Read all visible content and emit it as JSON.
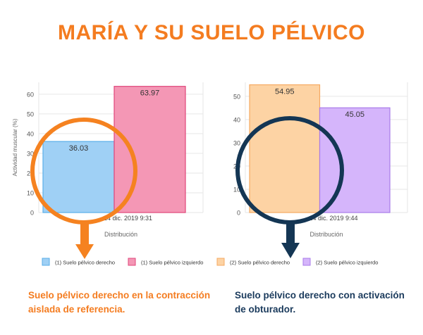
{
  "title": "MARÍA Y SU SUELO PÉLVICO",
  "chart_data": [
    {
      "type": "bar",
      "categories": [
        "14 dic. 2019 9:31"
      ],
      "series": [
        {
          "name": "(1) Suelo pélvico derecho",
          "values": [
            36.03
          ],
          "color": "#9fd0f5",
          "stroke": "#5aaee8"
        },
        {
          "name": "(1) Suelo pélvico izquierdo",
          "values": [
            63.97
          ],
          "color": "#f497b5",
          "stroke": "#e0457a"
        }
      ],
      "xlabel": "Distribución",
      "ylabel": "Actividad muscular (%)",
      "ylim": [
        0,
        65
      ],
      "yticks": [
        0,
        10,
        20,
        30,
        40,
        50,
        60
      ],
      "grid": true
    },
    {
      "type": "bar",
      "categories": [
        "14 dic. 2019 9:44"
      ],
      "series": [
        {
          "name": "(2) Suelo pélvico derecho",
          "values": [
            54.95
          ],
          "color": "#fdd3a4",
          "stroke": "#f5a962"
        },
        {
          "name": "(2) Suelo pélvico izquierdo",
          "values": [
            45.05
          ],
          "color": "#d5b5fb",
          "stroke": "#a87be8"
        }
      ],
      "xlabel": "Distribución",
      "ylabel": "",
      "ylim": [
        0,
        56
      ],
      "yticks": [
        0,
        10,
        20,
        30,
        40,
        50
      ],
      "grid": true
    }
  ],
  "legend": [
    {
      "label": "(1) Suelo pélvico derecho",
      "color": "#9fd0f5",
      "stroke": "#5aaee8"
    },
    {
      "label": "(1) Suelo pélvico izquierdo",
      "color": "#f497b5",
      "stroke": "#e0457a"
    },
    {
      "label": "(2) Suelo pélvico derecho",
      "color": "#fdd3a4",
      "stroke": "#f5a962"
    },
    {
      "label": "(2) Suelo pélvico izquierdo",
      "color": "#d5b5fb",
      "stroke": "#a87be8"
    }
  ],
  "captions": {
    "left": "Suelo pélvico derecho en la contracción aislada de referencia.",
    "right": "Suelo pélvico derecho con activación de obturador."
  },
  "annotation_colors": {
    "left_circle": "#f58220",
    "right_circle": "#143654"
  }
}
